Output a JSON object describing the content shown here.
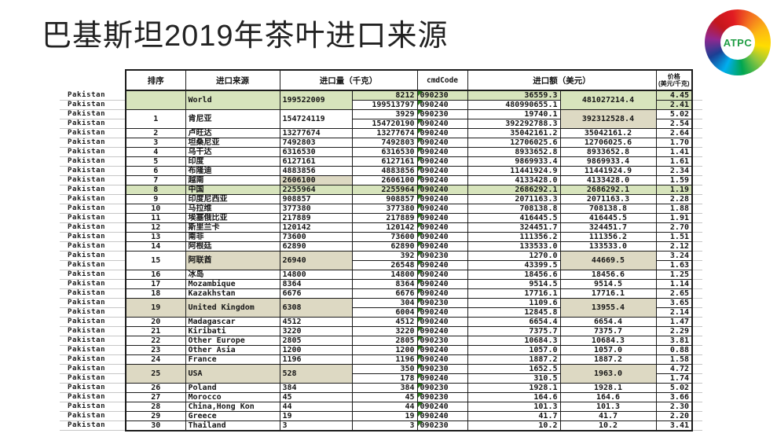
{
  "title": "巴基斯坦2019年茶叶进口来源",
  "row_label": "Pakistan",
  "logo": {
    "text": "ATPC",
    "text_color": "#1f9d44",
    "ring_colors": [
      "#e11b22",
      "#f36f21",
      "#fcb614",
      "#ffdd00",
      "#8dc63f",
      "#00a651",
      "#00aeef",
      "#1b3f94",
      "#92278f",
      "#c4161c",
      "#e11b22"
    ]
  },
  "table": {
    "colors": {
      "highlight_green": "#d7e4bc",
      "highlight_tan": "#ddd9c3",
      "error_flag_green": "#2e7d1e"
    },
    "headers": {
      "rank": "排序",
      "source": "进口来源",
      "qty": "进口量（千克）",
      "code": "cmdCode",
      "value": "进口额（美元）",
      "price1": "价格",
      "price2": "(美元/千克)"
    },
    "entries": [
      {
        "rank": "",
        "name": "World",
        "qty_total": "199522009",
        "value_total": "481027214.4",
        "subs": [
          {
            "qty": "8212",
            "code": "090230",
            "value": "36559.3",
            "price": "4.45"
          },
          {
            "qty": "199513797",
            "code": "090240",
            "value": "480990655.1",
            "price": "2.41"
          }
        ],
        "hl": {
          "rank": "g",
          "name": "g",
          "qty": "g",
          "sub": "g",
          "vtot": "g",
          "p0": "g",
          "p1": "g"
        }
      },
      {
        "rank": "1",
        "name": "肯尼亚",
        "qty_total": "154724119",
        "value_total": "392312528.4",
        "subs": [
          {
            "qty": "3929",
            "code": "090230",
            "value": "19740.1",
            "price": "5.02"
          },
          {
            "qty": "154720190",
            "code": "090240",
            "value": "392292788.3",
            "price": "2.54"
          }
        ],
        "hl": {
          "vtot": "t"
        }
      },
      {
        "rank": "2",
        "name": "卢旺达",
        "qty_total": "13277674",
        "value_total": "35042161.2",
        "subs": [
          {
            "qty": "13277674",
            "code": "090240",
            "value": "35042161.2",
            "price": "2.64"
          }
        ],
        "hl": {}
      },
      {
        "rank": "3",
        "name": "坦桑尼亚",
        "qty_total": "7492803",
        "value_total": "12706025.6",
        "subs": [
          {
            "qty": "7492803",
            "code": "090240",
            "value": "12706025.6",
            "price": "1.70"
          }
        ],
        "hl": {}
      },
      {
        "rank": "4",
        "name": "乌干达",
        "qty_total": "6316530",
        "value_total": "8933652.8",
        "subs": [
          {
            "qty": "6316530",
            "code": "090240",
            "value": "8933652.8",
            "price": "1.41"
          }
        ],
        "hl": {}
      },
      {
        "rank": "5",
        "name": "印度",
        "qty_total": "6127161",
        "value_total": "9869933.4",
        "subs": [
          {
            "qty": "6127161",
            "code": "090240",
            "value": "9869933.4",
            "price": "1.61"
          }
        ],
        "hl": {}
      },
      {
        "rank": "6",
        "name": "布隆迪",
        "qty_total": "4883856",
        "value_total": "11441924.9",
        "subs": [
          {
            "qty": "4883856",
            "code": "090240",
            "value": "11441924.9",
            "price": "2.34"
          }
        ],
        "hl": {}
      },
      {
        "rank": "7",
        "name": "越南",
        "qty_total": "2606100",
        "value_total": "4133428.0",
        "subs": [
          {
            "qty": "2606100",
            "code": "090240",
            "value": "4133428.0",
            "price": "1.59"
          }
        ],
        "hl": {
          "qty": "t"
        }
      },
      {
        "rank": "8",
        "name": "中国",
        "qty_total": "2255964",
        "value_total": "2686292.1",
        "subs": [
          {
            "qty": "2255964",
            "code": "090240",
            "value": "2686292.1",
            "price": "1.19"
          }
        ],
        "hl": {
          "rank": "g",
          "name": "g",
          "qty": "g",
          "sub": "g",
          "vtot": "g",
          "p0": "g"
        }
      },
      {
        "rank": "9",
        "name": "印度尼西亚",
        "qty_total": "908857",
        "value_total": "2071163.3",
        "subs": [
          {
            "qty": "908857",
            "code": "090240",
            "value": "2071163.3",
            "price": "2.28"
          }
        ],
        "hl": {}
      },
      {
        "rank": "10",
        "name": "马拉维",
        "qty_total": "377380",
        "value_total": "708138.8",
        "subs": [
          {
            "qty": "377380",
            "code": "090240",
            "value": "708138.8",
            "price": "1.88"
          }
        ],
        "hl": {}
      },
      {
        "rank": "11",
        "name": "埃塞俄比亚",
        "qty_total": "217889",
        "value_total": "416445.5",
        "subs": [
          {
            "qty": "217889",
            "code": "090240",
            "value": "416445.5",
            "price": "1.91"
          }
        ],
        "hl": {}
      },
      {
        "rank": "12",
        "name": "斯里兰卡",
        "qty_total": "120142",
        "value_total": "324451.7",
        "subs": [
          {
            "qty": "120142",
            "code": "090240",
            "value": "324451.7",
            "price": "2.70"
          }
        ],
        "hl": {}
      },
      {
        "rank": "13",
        "name": "南非",
        "qty_total": "73600",
        "value_total": "111356.2",
        "subs": [
          {
            "qty": "73600",
            "code": "090240",
            "value": "111356.2",
            "price": "1.51"
          }
        ],
        "hl": {}
      },
      {
        "rank": "14",
        "name": "阿根廷",
        "qty_total": "62890",
        "value_total": "133533.0",
        "subs": [
          {
            "qty": "62890",
            "code": "090240",
            "value": "133533.0",
            "price": "2.12"
          }
        ],
        "hl": {}
      },
      {
        "rank": "15",
        "name": "阿联酋",
        "qty_total": "26940",
        "value_total": "44669.5",
        "subs": [
          {
            "qty": "392",
            "code": "090230",
            "value": "1270.0",
            "price": "3.24"
          },
          {
            "qty": "26548",
            "code": "090240",
            "value": "43399.5",
            "price": "1.63"
          }
        ],
        "hl": {
          "name": "t",
          "qty": "t",
          "vtot": "t"
        }
      },
      {
        "rank": "16",
        "name": "冰岛",
        "qty_total": "14800",
        "value_total": "18456.6",
        "subs": [
          {
            "qty": "14800",
            "code": "090240",
            "value": "18456.6",
            "price": "1.25"
          }
        ],
        "hl": {}
      },
      {
        "rank": "17",
        "name": "Mozambique",
        "qty_total": "8364",
        "value_total": "9514.5",
        "subs": [
          {
            "qty": "8364",
            "code": "090240",
            "value": "9514.5",
            "price": "1.14"
          }
        ],
        "hl": {}
      },
      {
        "rank": "18",
        "name": "Kazakhstan",
        "qty_total": "6676",
        "value_total": "17716.1",
        "subs": [
          {
            "qty": "6676",
            "code": "090240",
            "value": "17716.1",
            "price": "2.65"
          }
        ],
        "hl": {}
      },
      {
        "rank": "19",
        "name": "United Kingdom",
        "qty_total": "6308",
        "value_total": "13955.4",
        "subs": [
          {
            "qty": "304",
            "code": "090230",
            "value": "1109.6",
            "price": "3.65"
          },
          {
            "qty": "6004",
            "code": "090240",
            "value": "12845.8",
            "price": "2.14"
          }
        ],
        "hl": {
          "rank": "t",
          "name": "t",
          "qty": "t",
          "vtot": "t"
        }
      },
      {
        "rank": "20",
        "name": "Madagascar",
        "qty_total": "4512",
        "value_total": "6654.4",
        "subs": [
          {
            "qty": "4512",
            "code": "090240",
            "value": "6654.4",
            "price": "1.47"
          }
        ],
        "hl": {}
      },
      {
        "rank": "21",
        "name": "Kiribati",
        "qty_total": "3220",
        "value_total": "7375.7",
        "subs": [
          {
            "qty": "3220",
            "code": "090240",
            "value": "7375.7",
            "price": "2.29"
          }
        ],
        "hl": {}
      },
      {
        "rank": "22",
        "name": "Other Europe",
        "qty_total": "2805",
        "value_total": "10684.3",
        "subs": [
          {
            "qty": "2805",
            "code": "090230",
            "value": "10684.3",
            "price": "3.81"
          }
        ],
        "hl": {}
      },
      {
        "rank": "23",
        "name": "Other Asia",
        "qty_total": "1200",
        "value_total": "1057.0",
        "subs": [
          {
            "qty": "1200",
            "code": "090240",
            "value": "1057.0",
            "price": "0.88"
          }
        ],
        "hl": {}
      },
      {
        "rank": "24",
        "name": "France",
        "qty_total": "1196",
        "value_total": "1887.2",
        "subs": [
          {
            "qty": "1196",
            "code": "090240",
            "value": "1887.2",
            "price": "1.58"
          }
        ],
        "hl": {}
      },
      {
        "rank": "25",
        "name": "USA",
        "qty_total": "528",
        "value_total": "1963.0",
        "subs": [
          {
            "qty": "350",
            "code": "090230",
            "value": "1652.5",
            "price": "4.72"
          },
          {
            "qty": "178",
            "code": "090240",
            "value": "310.5",
            "price": "1.74"
          }
        ],
        "hl": {
          "rank": "t",
          "name": "t",
          "qty": "t",
          "vtot": "t"
        }
      },
      {
        "rank": "26",
        "name": "Poland",
        "qty_total": "384",
        "value_total": "1928.1",
        "subs": [
          {
            "qty": "384",
            "code": "090230",
            "value": "1928.1",
            "price": "5.02"
          }
        ],
        "hl": {}
      },
      {
        "rank": "27",
        "name": "Morocco",
        "qty_total": "45",
        "value_total": "164.6",
        "subs": [
          {
            "qty": "45",
            "code": "090230",
            "value": "164.6",
            "price": "3.66"
          }
        ],
        "hl": {}
      },
      {
        "rank": "28",
        "name": "China,Hong Kon",
        "qty_total": "44",
        "value_total": "101.3",
        "subs": [
          {
            "qty": "44",
            "code": "090240",
            "value": "101.3",
            "price": "2.30"
          }
        ],
        "hl": {}
      },
      {
        "rank": "29",
        "name": "Greece",
        "qty_total": "19",
        "value_total": "41.7",
        "subs": [
          {
            "qty": "19",
            "code": "090240",
            "value": "41.7",
            "price": "2.20"
          }
        ],
        "hl": {}
      },
      {
        "rank": "30",
        "name": "Thailand",
        "qty_total": "3",
        "value_total": "10.2",
        "subs": [
          {
            "qty": "3",
            "code": "090230",
            "value": "10.2",
            "price": "3.41"
          }
        ],
        "hl": {}
      }
    ]
  }
}
